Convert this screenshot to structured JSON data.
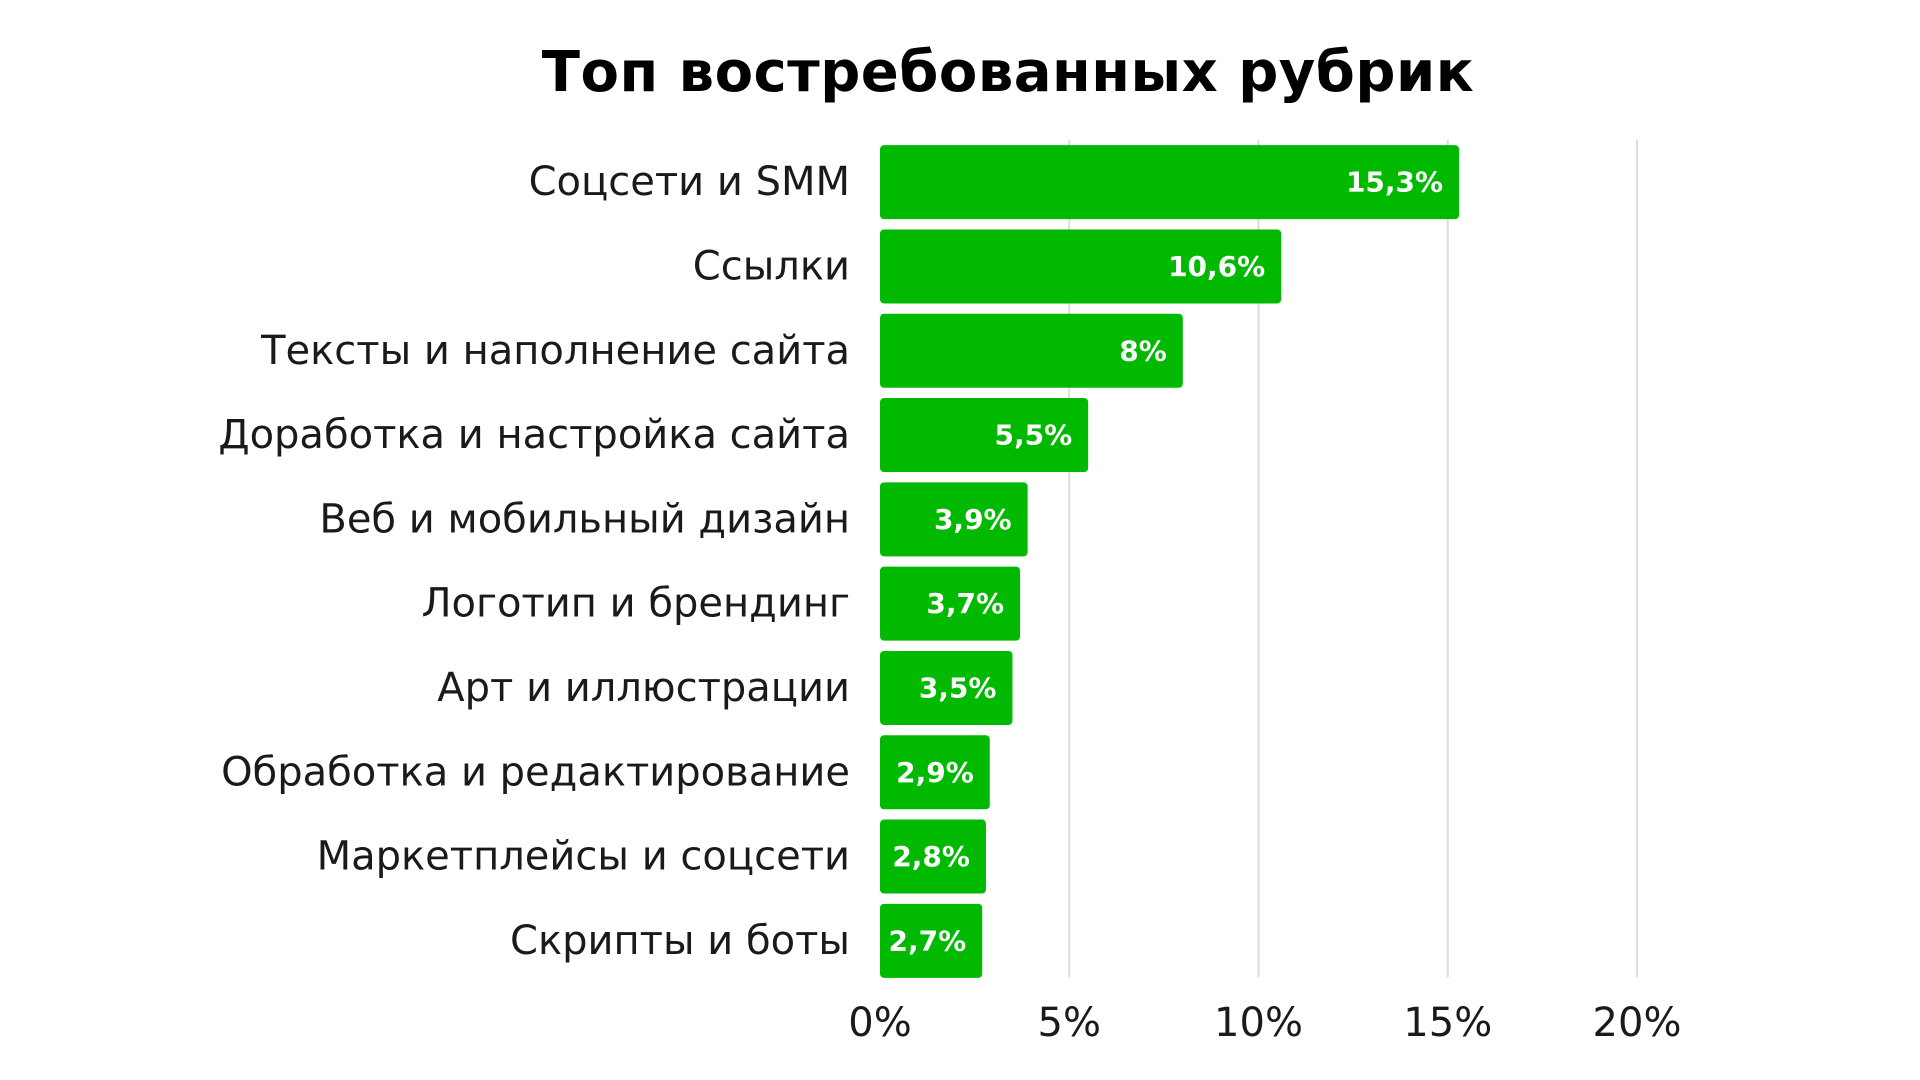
{
  "chart_data": {
    "type": "bar",
    "orientation": "horizontal",
    "title": "Топ востребованных рубрик",
    "categories": [
      "Соцсети и SMM",
      "Ссылки",
      "Тексты и наполнение сайта",
      "Доработка и настройка сайта",
      "Веб и мобильный дизайн",
      "Логотип и брендинг",
      "Арт и иллюстрации",
      "Обработка и редактирование",
      "Маркетплейсы и соцсети",
      "Скрипты и боты"
    ],
    "values": [
      15.3,
      10.6,
      8,
      5.5,
      3.9,
      3.7,
      3.5,
      2.9,
      2.8,
      2.7
    ],
    "data_labels": [
      "15,3%",
      "10,6%",
      "8%",
      "5,5%",
      "3,9%",
      "3,7%",
      "3,5%",
      "2,9%",
      "2,8%",
      "2,7%"
    ],
    "xlim": [
      0,
      20
    ],
    "x_ticks": [
      0,
      5,
      10,
      15,
      20
    ],
    "x_tick_labels": [
      "0%",
      "5%",
      "10%",
      "15%",
      "20%"
    ],
    "xlabel": "",
    "ylabel": "",
    "grid": "vertical",
    "legend": "none",
    "bar_color": "#00b900"
  }
}
